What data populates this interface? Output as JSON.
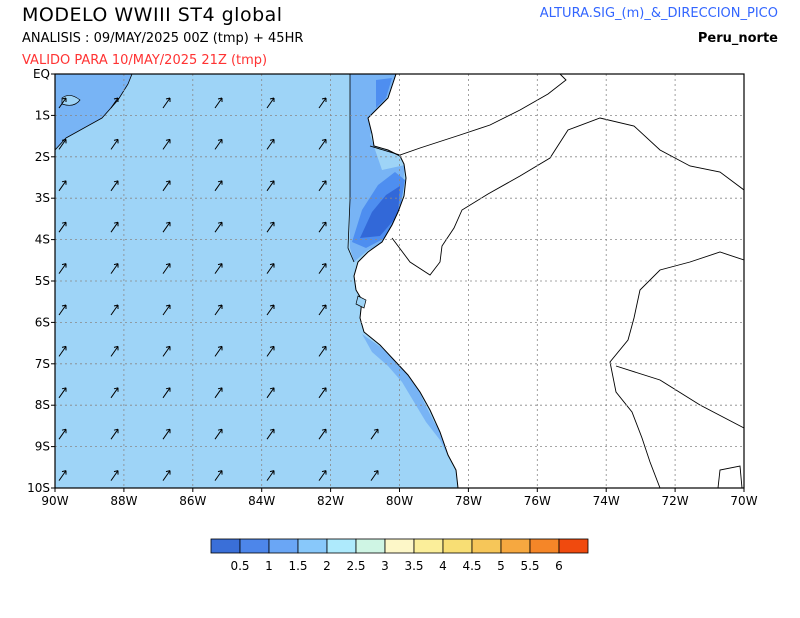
{
  "header": {
    "title": "MODELO  WWIII  ST4  global",
    "analysis": "ANALISIS : 09/MAY/2025 00Z  (tmp) + 45HR",
    "valid": "VALIDO PARA  10/MAY/2025 21Z  (tmp)",
    "variable": "ALTURA.SIG_(m)_&_DIRECCION_PICO",
    "region": "Peru_norte"
  },
  "axes": {
    "lon_range": [
      -90,
      -70
    ],
    "lat_range": [
      -10,
      0
    ],
    "x_ticks": [
      "90W",
      "88W",
      "86W",
      "84W",
      "82W",
      "80W",
      "78W",
      "76W",
      "74W",
      "72W",
      "70W"
    ],
    "y_ticks": [
      "EQ",
      "1S",
      "2S",
      "3S",
      "4S",
      "5S",
      "6S",
      "7S",
      "8S",
      "9S",
      "10S"
    ],
    "grid": true
  },
  "colors": {
    "land": "#ffffff",
    "sea_1_5_2": "#9ed4f7",
    "sea_1_1_5": "#78b4f5",
    "sea_0_5_1": "#4e8ef0",
    "sea_lt_0_5": "#3268d8",
    "coast": "#000000"
  },
  "chart_data": {
    "type": "heatmap",
    "units": "m",
    "field": "significant wave height with peak direction arrows",
    "direction_arrows": "pointing north-east across the domain",
    "legend": {
      "labels": [
        "0.5",
        "1",
        "1.5",
        "2",
        "2.5",
        "3",
        "3.5",
        "4",
        "4.5",
        "5",
        "5.5",
        "6"
      ],
      "colors": [
        "#3a6fd8",
        "#4d86ea",
        "#6aa6f5",
        "#88c8fa",
        "#aeeafc",
        "#cff5e4",
        "#fdf7c8",
        "#fbee9a",
        "#f8de74",
        "#f6c659",
        "#f6a840",
        "#f58628",
        "#f04a0e"
      ]
    }
  }
}
